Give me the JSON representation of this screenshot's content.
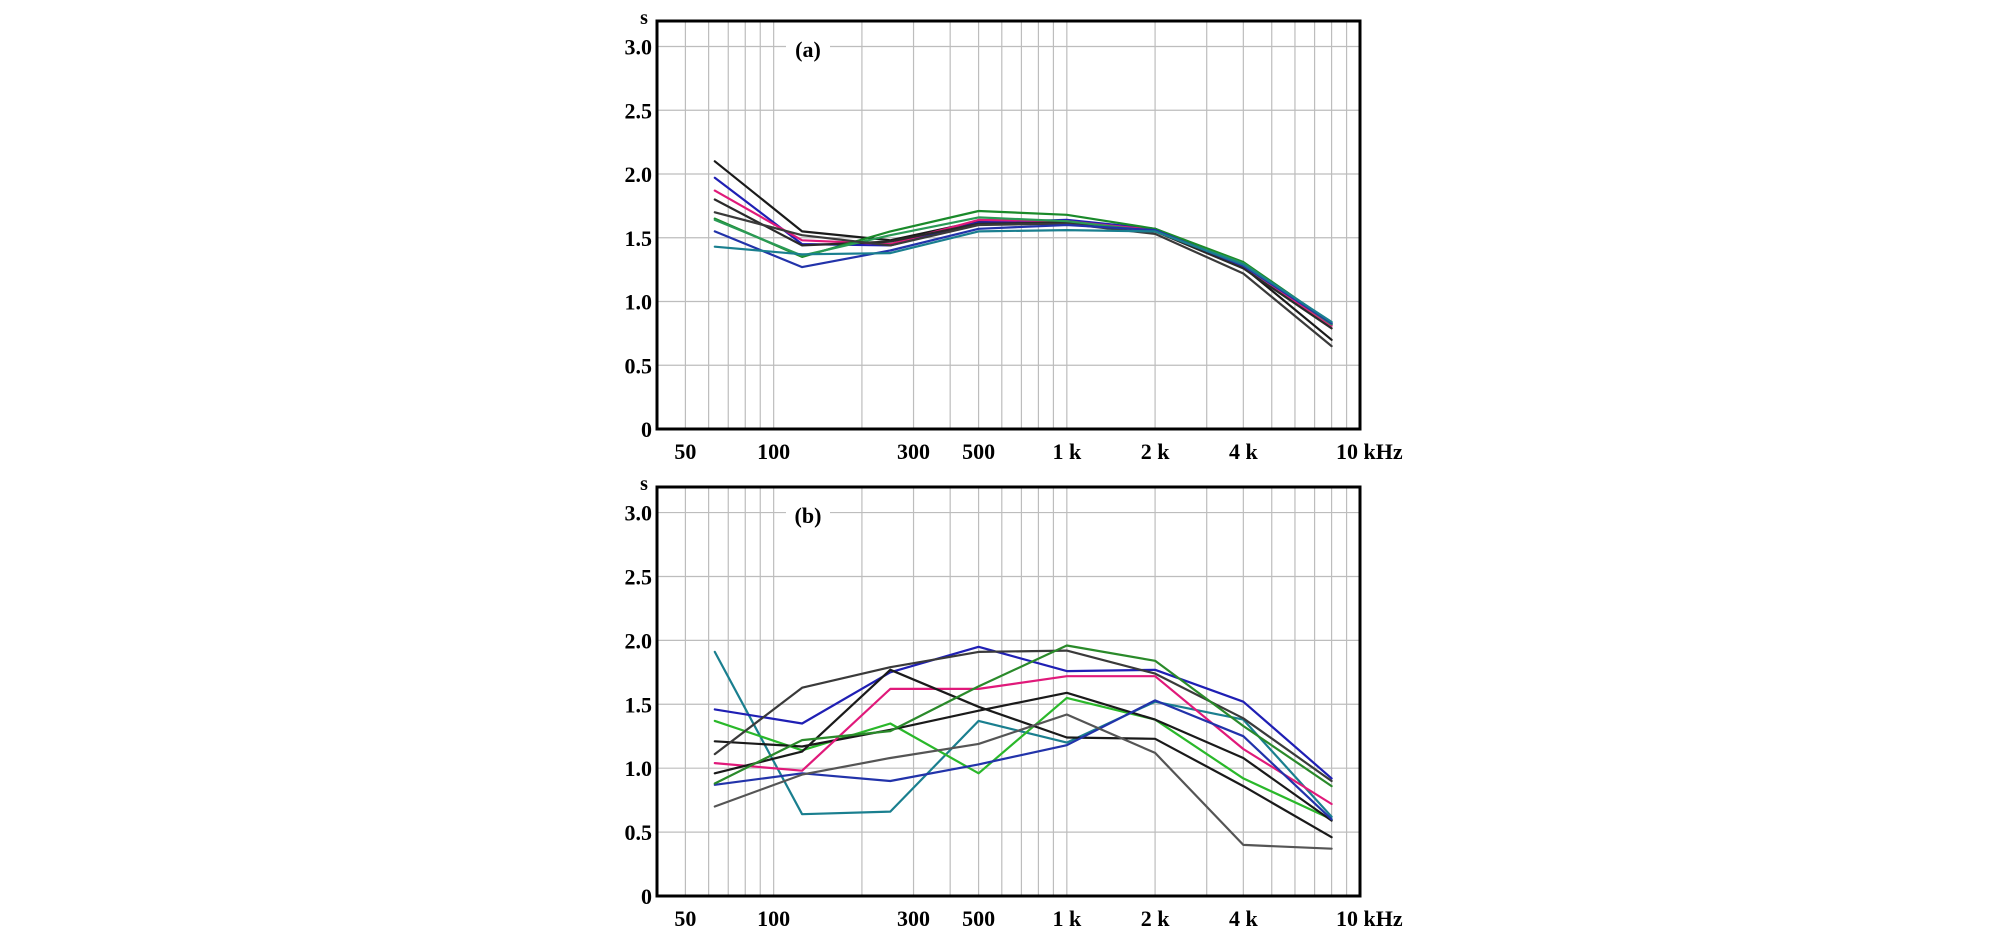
{
  "chart_data": [
    {
      "type": "line",
      "panel_label": "(a)",
      "y_unit": "s",
      "ylim": [
        0,
        3.2
      ],
      "yticks": [
        0,
        0.5,
        1.0,
        1.5,
        2.0,
        2.5,
        3.0
      ],
      "ytick_labels": [
        "0",
        "0.5",
        "1.0",
        "1.5",
        "2.0",
        "2.5",
        "3.0"
      ],
      "x_scale": "log",
      "xlim": [
        40,
        10000
      ],
      "xticks": [
        50,
        100,
        300,
        500,
        1000,
        2000,
        4000,
        10000
      ],
      "xtick_labels": [
        "50",
        "100",
        "300",
        "500",
        "1 k",
        "2 k",
        "4 k",
        "10 kHz"
      ],
      "grid": true,
      "x": [
        63,
        125,
        250,
        500,
        1000,
        2000,
        4000,
        8000
      ],
      "series": [
        {
          "color": "#1a1a1a",
          "values": [
            2.1,
            1.55,
            1.48,
            1.63,
            1.63,
            1.57,
            1.27,
            0.7
          ]
        },
        {
          "color": "#1f1fb4",
          "values": [
            1.97,
            1.45,
            1.44,
            1.62,
            1.64,
            1.57,
            1.29,
            0.82
          ]
        },
        {
          "color": "#e0197a",
          "values": [
            1.87,
            1.48,
            1.45,
            1.64,
            1.63,
            1.56,
            1.28,
            0.81
          ]
        },
        {
          "color": "#2a2a2a",
          "values": [
            1.8,
            1.44,
            1.47,
            1.61,
            1.62,
            1.55,
            1.26,
            0.79
          ]
        },
        {
          "color": "#1a8a2a",
          "values": [
            1.65,
            1.35,
            1.55,
            1.71,
            1.68,
            1.57,
            1.31,
            0.83
          ]
        },
        {
          "color": "#2a9a55",
          "values": [
            1.64,
            1.36,
            1.52,
            1.66,
            1.63,
            1.55,
            1.3,
            0.82
          ]
        },
        {
          "color": "#3a3a3a",
          "values": [
            1.7,
            1.52,
            1.44,
            1.6,
            1.61,
            1.53,
            1.22,
            0.65
          ]
        },
        {
          "color": "#2233aa",
          "values": [
            1.55,
            1.27,
            1.4,
            1.57,
            1.6,
            1.56,
            1.28,
            0.83
          ]
        },
        {
          "color": "#1a7f8f",
          "values": [
            1.43,
            1.37,
            1.38,
            1.55,
            1.56,
            1.55,
            1.29,
            0.84
          ]
        }
      ]
    },
    {
      "type": "line",
      "panel_label": "(b)",
      "y_unit": "s",
      "ylim": [
        0,
        3.2
      ],
      "yticks": [
        0,
        0.5,
        1.0,
        1.5,
        2.0,
        2.5,
        3.0
      ],
      "ytick_labels": [
        "0",
        "0.5",
        "1.0",
        "1.5",
        "2.0",
        "2.5",
        "3.0"
      ],
      "x_scale": "log",
      "xlim": [
        40,
        10000
      ],
      "xticks": [
        50,
        100,
        300,
        500,
        1000,
        2000,
        4000,
        10000
      ],
      "xtick_labels": [
        "50",
        "100",
        "300",
        "500",
        "1 k",
        "2 k",
        "4 k",
        "10 kHz"
      ],
      "grid": true,
      "x": [
        63,
        125,
        250,
        500,
        1000,
        2000,
        4000,
        8000
      ],
      "series": [
        {
          "color": "#1a7f8f",
          "values": [
            1.91,
            0.64,
            0.66,
            1.37,
            1.2,
            1.52,
            1.38,
            0.62
          ]
        },
        {
          "color": "#1f1fb4",
          "values": [
            1.46,
            1.35,
            1.75,
            1.95,
            1.76,
            1.77,
            1.52,
            0.92
          ]
        },
        {
          "color": "#2ab82a",
          "values": [
            1.37,
            1.14,
            1.35,
            0.96,
            1.55,
            1.38,
            0.92,
            0.6
          ]
        },
        {
          "color": "#1a1a1a",
          "values": [
            1.21,
            1.17,
            1.3,
            1.45,
            1.59,
            1.38,
            1.08,
            0.59
          ]
        },
        {
          "color": "#3a3a3a",
          "values": [
            1.11,
            1.63,
            1.79,
            1.91,
            1.92,
            1.74,
            1.39,
            0.9
          ]
        },
        {
          "color": "#e0197a",
          "values": [
            1.04,
            0.98,
            1.62,
            1.62,
            1.72,
            1.72,
            1.15,
            0.72
          ]
        },
        {
          "color": "#1a1a1a",
          "values": [
            0.96,
            1.13,
            1.77,
            1.48,
            1.24,
            1.23,
            0.86,
            0.46
          ]
        },
        {
          "color": "#2233aa",
          "values": [
            0.87,
            0.96,
            0.9,
            1.03,
            1.18,
            1.53,
            1.25,
            0.6
          ]
        },
        {
          "color": "#2a8a2a",
          "values": [
            0.88,
            1.22,
            1.29,
            1.64,
            1.96,
            1.84,
            1.33,
            0.86
          ]
        },
        {
          "color": "#555555",
          "values": [
            0.7,
            0.95,
            1.08,
            1.19,
            1.42,
            1.12,
            0.4,
            0.37
          ]
        }
      ]
    }
  ]
}
